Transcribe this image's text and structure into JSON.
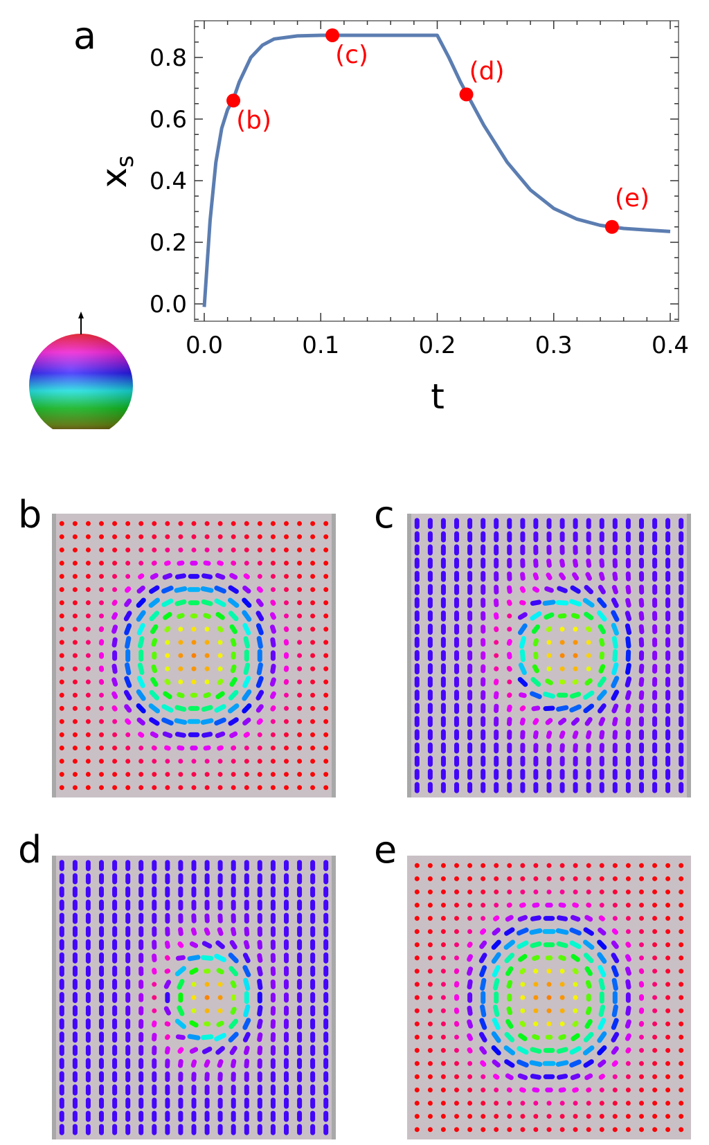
{
  "panel_labels": {
    "a": "a",
    "b": "b",
    "c": "c",
    "d": "d",
    "e": "e"
  },
  "chart_data": {
    "type": "line",
    "title": "",
    "xlabel": "t",
    "ylabel": "x",
    "ylabel_subscript": "s",
    "xlim": [
      0,
      0.4
    ],
    "ylim": [
      -0.05,
      0.92
    ],
    "xticks": [
      "0.0",
      "0.1",
      "0.2",
      "0.3",
      "0.4"
    ],
    "yticks": [
      "0.0",
      "0.2",
      "0.4",
      "0.6",
      "0.8"
    ],
    "grid": false,
    "line_color": "#5b7db1",
    "marker_color": "#ff0000",
    "series": [
      {
        "t": [
          0,
          0.005,
          0.01,
          0.015,
          0.02,
          0.025,
          0.03,
          0.04,
          0.05,
          0.06,
          0.08,
          0.1,
          0.15,
          0.2,
          0.21,
          0.22,
          0.23,
          0.24,
          0.26,
          0.28,
          0.3,
          0.32,
          0.34,
          0.36,
          0.38,
          0.4
        ],
        "xs": [
          -0.01,
          0.27,
          0.46,
          0.57,
          0.63,
          0.665,
          0.72,
          0.8,
          0.84,
          0.86,
          0.87,
          0.872,
          0.872,
          0.872,
          0.8,
          0.72,
          0.65,
          0.58,
          0.46,
          0.37,
          0.31,
          0.275,
          0.255,
          0.245,
          0.24,
          0.235
        ]
      }
    ],
    "markers": [
      {
        "label": "(b)",
        "t": 0.025,
        "xs": 0.66
      },
      {
        "label": "(c)",
        "t": 0.11,
        "xs": 0.872
      },
      {
        "label": "(d)",
        "t": 0.225,
        "xs": 0.68
      },
      {
        "label": "(e)",
        "t": 0.35,
        "xs": 0.25
      }
    ]
  },
  "color_sphere": {
    "icon": "color-sphere-legend-icon",
    "arrow": "up-arrow-icon"
  },
  "spin_panels": [
    {
      "id": "b",
      "state": "skyrmion-centered",
      "background_color": "#c9c0c5"
    },
    {
      "id": "c",
      "state": "skyrmion-shifted-in-tilted-background",
      "background_color": "#c9c0c5"
    },
    {
      "id": "d",
      "state": "skyrmion-shifted-in-tilted-background-smaller",
      "background_color": "#c9c0c5"
    },
    {
      "id": "e",
      "state": "skyrmion-centered",
      "background_color": "#c9c0c5"
    }
  ]
}
